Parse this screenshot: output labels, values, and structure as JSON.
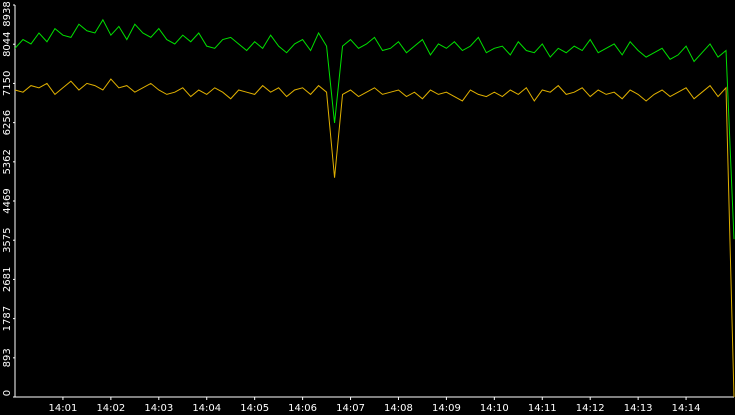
{
  "chart_data": {
    "type": "line",
    "categories": [
      null,
      null,
      null,
      null,
      null,
      null,
      "14:01",
      null,
      null,
      null,
      null,
      null,
      "14:02",
      null,
      null,
      null,
      null,
      null,
      "14:03",
      null,
      null,
      null,
      null,
      null,
      "14:04",
      null,
      null,
      null,
      null,
      null,
      "14:05",
      null,
      null,
      null,
      null,
      null,
      "14:06",
      null,
      null,
      null,
      null,
      null,
      "14:07",
      null,
      null,
      null,
      null,
      null,
      "14:08",
      null,
      null,
      null,
      null,
      null,
      "14:09",
      null,
      null,
      null,
      null,
      null,
      "14:10",
      null,
      null,
      null,
      null,
      null,
      "14:11",
      null,
      null,
      null,
      null,
      null,
      "14:12",
      null,
      null,
      null,
      null,
      null,
      "14:13",
      null,
      null,
      null,
      null,
      null,
      "14:14",
      null,
      null,
      null,
      null,
      null,
      null
    ],
    "series": [
      {
        "color": "#00e000",
        "values": [
          7950,
          8150,
          8050,
          8300,
          8100,
          8400,
          8250,
          8200,
          8500,
          8350,
          8300,
          8600,
          8250,
          8450,
          8150,
          8500,
          8300,
          8200,
          8400,
          8150,
          8050,
          8250,
          8100,
          8300,
          8000,
          7950,
          8150,
          8200,
          8050,
          7900,
          8100,
          7950,
          8250,
          8000,
          7850,
          8050,
          8150,
          7900,
          8300,
          8000,
          6250,
          8000,
          8150,
          7950,
          8050,
          8200,
          7900,
          7950,
          8100,
          7850,
          8000,
          8150,
          7800,
          8050,
          7950,
          8100,
          7900,
          8000,
          8200,
          7850,
          7950,
          8000,
          7800,
          8100,
          7900,
          7850,
          8050,
          7750,
          7950,
          7850,
          8000,
          7900,
          8150,
          7850,
          7950,
          8050,
          7800,
          8100,
          7900,
          7750,
          7850,
          7950,
          7700,
          7800,
          8000,
          7650,
          7850,
          8050,
          7750,
          7900,
          3600
        ]
      },
      {
        "color": "#e0b000",
        "values": [
          7000,
          6950,
          7100,
          7050,
          7150,
          6900,
          7050,
          7200,
          7000,
          7150,
          7100,
          7000,
          7250,
          7050,
          7100,
          6950,
          7050,
          7150,
          7000,
          6900,
          6950,
          7050,
          6850,
          7000,
          6900,
          7050,
          6950,
          6800,
          7000,
          6950,
          6900,
          7100,
          6950,
          7050,
          6850,
          7000,
          7050,
          6900,
          7100,
          6950,
          5000,
          6900,
          7000,
          6850,
          6950,
          7050,
          6900,
          6950,
          7000,
          6850,
          6950,
          6800,
          7000,
          6900,
          6950,
          6850,
          6750,
          7000,
          6900,
          6850,
          6950,
          6850,
          7000,
          6900,
          7050,
          6750,
          7000,
          6950,
          7100,
          6900,
          6950,
          7050,
          6850,
          7000,
          6900,
          6950,
          6800,
          7000,
          6900,
          6750,
          6900,
          7000,
          6850,
          6950,
          7050,
          6800,
          6950,
          7100,
          6850,
          7050,
          0
        ]
      }
    ],
    "ylim": [
      0,
      8938
    ],
    "yticks": [
      0,
      893,
      1787,
      2681,
      3575,
      4469,
      5362,
      6256,
      7150,
      8044,
      8938
    ]
  }
}
